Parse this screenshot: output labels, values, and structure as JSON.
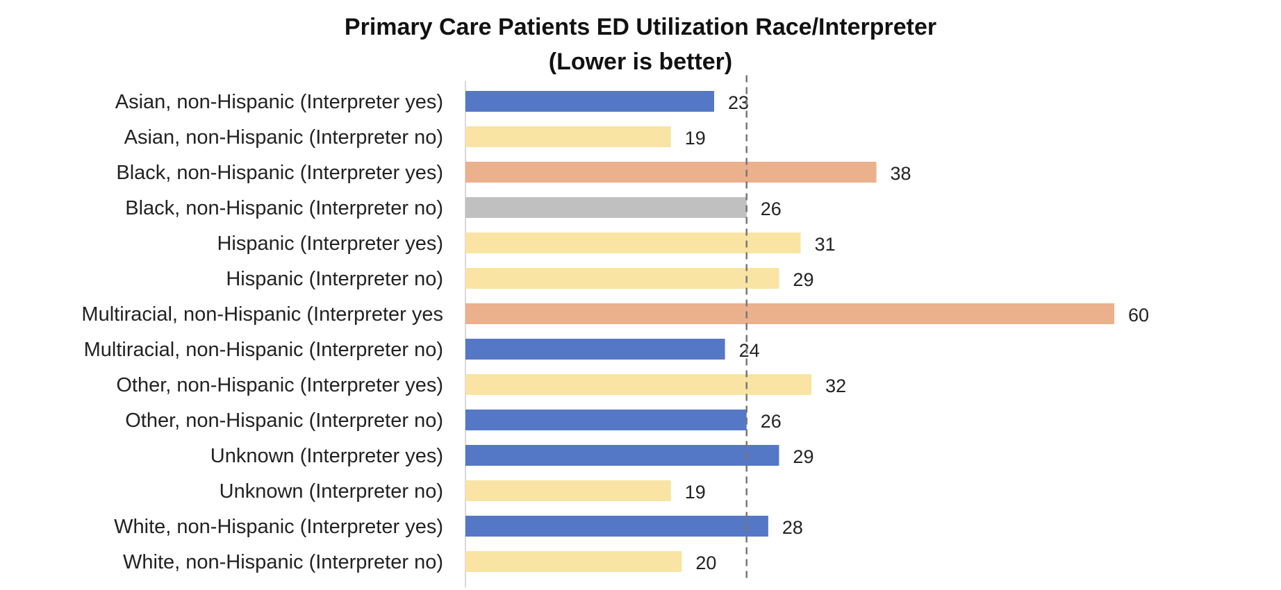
{
  "chart_data": {
    "type": "bar",
    "orientation": "horizontal",
    "title": "Primary Care Patients ED Utilization Race/Interpreter",
    "subtitle": "(Lower is better)",
    "categories": [
      "Asian, non-Hispanic (Interpreter yes)",
      "Asian, non-Hispanic (Interpreter no)",
      "Black, non-Hispanic (Interpreter yes)",
      "Black, non-Hispanic (Interpreter no)",
      "Hispanic (Interpreter yes)",
      "Hispanic (Interpreter no)",
      "Multiracial, non-Hispanic (Interpreter yes",
      "Multiracial, non-Hispanic (Interpreter no)",
      "Other, non-Hispanic (Interpreter yes)",
      "Other, non-Hispanic (Interpreter no)",
      "Unknown (Interpreter yes)",
      "Unknown (Interpreter no)",
      "White, non-Hispanic (Interpreter yes)",
      "White, non-Hispanic (Interpreter no)"
    ],
    "values": [
      23,
      19,
      38,
      26,
      31,
      29,
      60,
      24,
      32,
      26,
      29,
      19,
      28,
      20
    ],
    "bar_colors": [
      "#5578C6",
      "#F9E4A3",
      "#EBB08C",
      "#C0C0C0",
      "#F9E4A3",
      "#F9E4A3",
      "#EBB08C",
      "#5578C6",
      "#F9E4A3",
      "#5578C6",
      "#5578C6",
      "#F9E4A3",
      "#5578C6",
      "#F9E4A3"
    ],
    "reference_line": {
      "value": 26,
      "style": "dashed",
      "color": "#777777"
    },
    "xlim": [
      0,
      60
    ],
    "axis_line_color": "#D9D9D9",
    "grid": false,
    "legend": "none"
  }
}
